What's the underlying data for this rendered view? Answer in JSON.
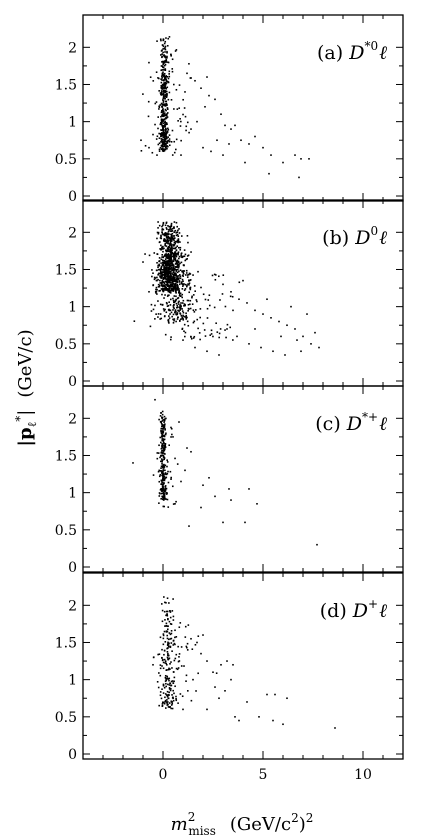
{
  "colors": {
    "frame": "#000000",
    "points": "#000000",
    "background": "#ffffff"
  },
  "chart_data": {
    "type": "scatter",
    "layout": "four vertically stacked panels sharing the x axis",
    "xlabel": {
      "math": "m",
      "sup": "2",
      "sub": "miss",
      "units": "(GeV/c",
      "units_sup": "2",
      "units_close": ")",
      "units_outer_sup": "2"
    },
    "ylabel": {
      "math": "|p",
      "sub": "ℓ",
      "sup": "*",
      "close": "|",
      "units": "(GeV/c)"
    },
    "xlim": [
      -4,
      12
    ],
    "ylim": [
      0,
      2.3
    ],
    "x_ticks": [
      0,
      5,
      10
    ],
    "x_tick_labels": [
      "0",
      "5",
      "10"
    ],
    "y_ticks": [
      0,
      0.5,
      1,
      1.5,
      2
    ],
    "y_tick_labels": [
      "0",
      "0.5",
      "1",
      "1.5",
      "2"
    ],
    "grid": false,
    "panels": [
      {
        "tag": "(a)",
        "meson": "D",
        "meson_sup": "*0",
        "lepton": "ℓ",
        "clusters": [
          {
            "x_mean": 0.05,
            "x_sd": 0.1,
            "y_min": 0.6,
            "y_max": 2.15,
            "n": 380
          },
          {
            "x_mean": 0.2,
            "x_sd": 0.5,
            "y_min": 0.55,
            "y_max": 2.05,
            "n": 90
          }
        ],
        "points": [
          [
            1.2,
            1.65
          ],
          [
            1.6,
            1.55
          ],
          [
            1.9,
            1.45
          ],
          [
            2.1,
            1.2
          ],
          [
            2.3,
            1.35
          ],
          [
            2.6,
            1.3
          ],
          [
            2.9,
            1.1
          ],
          [
            3.1,
            0.95
          ],
          [
            3.4,
            0.9
          ],
          [
            3.6,
            0.95
          ],
          [
            3.9,
            0.75
          ],
          [
            4.3,
            0.7
          ],
          [
            4.6,
            0.8
          ],
          [
            5.0,
            0.65
          ],
          [
            5.4,
            0.55
          ],
          [
            6.0,
            0.45
          ],
          [
            6.6,
            0.55
          ],
          [
            6.9,
            0.5
          ],
          [
            7.3,
            0.5
          ],
          [
            5.3,
            0.3
          ],
          [
            6.8,
            0.25
          ],
          [
            2.0,
            0.65
          ],
          [
            2.7,
            0.75
          ],
          [
            4.1,
            0.45
          ],
          [
            1.4,
            0.9
          ],
          [
            3.0,
            0.55
          ],
          [
            -1.1,
            0.75
          ],
          [
            -0.7,
            0.65
          ],
          [
            -0.3,
            0.55
          ],
          [
            0.9,
            0.55
          ],
          [
            1.7,
            1.0
          ],
          [
            2.4,
            0.6
          ],
          [
            3.3,
            0.7
          ],
          [
            2.2,
            1.6
          ],
          [
            1.1,
            1.4
          ]
        ]
      },
      {
        "tag": "(b)",
        "meson": "D",
        "meson_sup": "0",
        "lepton": "ℓ",
        "clusters": [
          {
            "x_mean": 0.3,
            "x_sd": 0.3,
            "y_min": 1.2,
            "y_max": 2.15,
            "n": 750
          },
          {
            "x_mean": 0.6,
            "x_sd": 0.45,
            "y_min": 0.8,
            "y_max": 1.8,
            "n": 280
          },
          {
            "x_mean": 1.5,
            "x_sd": 1.0,
            "y_min": 0.55,
            "y_max": 1.5,
            "n": 110
          }
        ],
        "points": [
          [
            3.0,
            1.3
          ],
          [
            3.4,
            1.2
          ],
          [
            3.8,
            1.1
          ],
          [
            4.2,
            1.05
          ],
          [
            4.6,
            0.95
          ],
          [
            5.0,
            0.9
          ],
          [
            5.4,
            0.85
          ],
          [
            5.8,
            0.8
          ],
          [
            6.2,
            0.75
          ],
          [
            6.6,
            0.7
          ],
          [
            7.0,
            0.6
          ],
          [
            7.4,
            0.5
          ],
          [
            7.8,
            0.45
          ],
          [
            6.9,
            0.4
          ],
          [
            6.1,
            0.35
          ],
          [
            5.5,
            0.4
          ],
          [
            4.9,
            0.45
          ],
          [
            4.3,
            0.5
          ],
          [
            3.7,
            0.6
          ],
          [
            3.2,
            0.7
          ],
          [
            2.8,
            0.35
          ],
          [
            2.2,
            0.4
          ],
          [
            1.6,
            0.45
          ],
          [
            1.0,
            0.55
          ],
          [
            -1.0,
            1.6
          ],
          [
            -0.7,
            1.2
          ],
          [
            -0.5,
            1.45
          ],
          [
            6.4,
            1.0
          ],
          [
            7.2,
            0.9
          ],
          [
            5.2,
            1.1
          ],
          [
            4.0,
            1.35
          ],
          [
            3.5,
            0.95
          ],
          [
            6.7,
            0.55
          ],
          [
            7.6,
            0.65
          ],
          [
            4.6,
            0.7
          ],
          [
            5.9,
            0.6
          ]
        ]
      },
      {
        "tag": "(c)",
        "meson": "D",
        "meson_sup": "*+",
        "lepton": "ℓ",
        "clusters": [
          {
            "x_mean": 0.0,
            "x_sd": 0.08,
            "y_min": 0.9,
            "y_max": 2.1,
            "n": 240
          },
          {
            "x_mean": 0.15,
            "x_sd": 0.3,
            "y_min": 0.8,
            "y_max": 2.0,
            "n": 40
          }
        ],
        "points": [
          [
            -1.5,
            1.4
          ],
          [
            -0.4,
            2.25
          ],
          [
            0.8,
            1.95
          ],
          [
            1.2,
            1.6
          ],
          [
            1.4,
            1.55
          ],
          [
            1.1,
            1.3
          ],
          [
            2.0,
            1.1
          ],
          [
            2.3,
            1.2
          ],
          [
            2.6,
            0.95
          ],
          [
            1.9,
            0.8
          ],
          [
            1.3,
            0.55
          ],
          [
            3.3,
            1.05
          ],
          [
            3.4,
            0.9
          ],
          [
            4.3,
            1.05
          ],
          [
            4.7,
            0.85
          ],
          [
            4.1,
            0.6
          ],
          [
            3.0,
            0.6
          ],
          [
            0.6,
            0.85
          ],
          [
            7.7,
            0.3
          ],
          [
            0.5,
            1.75
          ],
          [
            0.9,
            1.15
          ]
        ]
      },
      {
        "tag": "(d)",
        "meson": "D",
        "meson_sup": "+",
        "lepton": "ℓ",
        "clusters": [
          {
            "x_mean": 0.2,
            "x_sd": 0.22,
            "y_min": 0.6,
            "y_max": 2.15,
            "n": 200
          },
          {
            "x_mean": 0.8,
            "x_sd": 0.6,
            "y_min": 0.7,
            "y_max": 1.9,
            "n": 50
          }
        ],
        "points": [
          [
            1.4,
            1.55
          ],
          [
            1.7,
            1.5
          ],
          [
            2.0,
            1.6
          ],
          [
            1.9,
            1.35
          ],
          [
            2.2,
            1.25
          ],
          [
            2.5,
            1.1
          ],
          [
            2.9,
            1.2
          ],
          [
            3.2,
            1.25
          ],
          [
            3.5,
            1.2
          ],
          [
            3.4,
            1.0
          ],
          [
            3.1,
            0.85
          ],
          [
            2.8,
            0.75
          ],
          [
            2.2,
            0.6
          ],
          [
            3.6,
            0.5
          ],
          [
            3.8,
            0.45
          ],
          [
            4.8,
            0.5
          ],
          [
            5.2,
            0.8
          ],
          [
            5.6,
            0.8
          ],
          [
            5.5,
            0.45
          ],
          [
            6.0,
            0.4
          ],
          [
            6.2,
            0.75
          ],
          [
            8.6,
            0.35
          ],
          [
            1.0,
            0.6
          ],
          [
            1.5,
            1.0
          ],
          [
            2.6,
            0.9
          ],
          [
            4.2,
            0.7
          ],
          [
            -0.5,
            1.2
          ]
        ]
      }
    ]
  }
}
